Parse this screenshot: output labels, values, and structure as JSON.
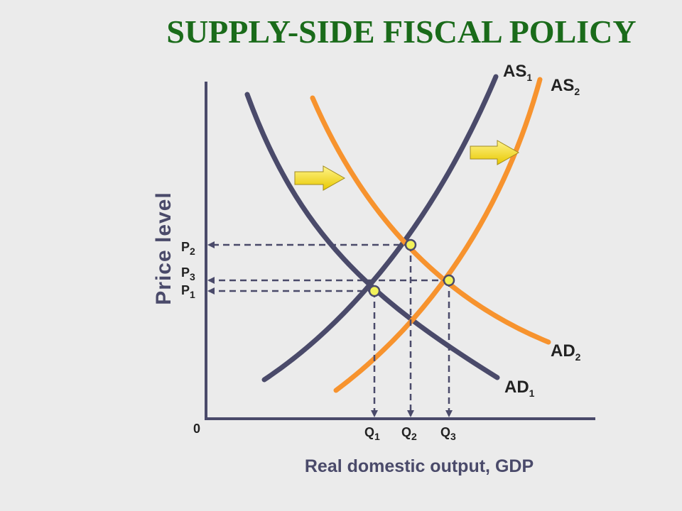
{
  "title": "SUPPLY-SIDE FISCAL POLICY",
  "y_axis_label": "Price level",
  "x_axis_label": "Real domestic output, GDP",
  "origin_label": "0",
  "curve_labels": [
    {
      "text": "AS",
      "sub": "1"
    },
    {
      "text": "AS",
      "sub": "2"
    },
    {
      "text": "AD",
      "sub": "2"
    },
    {
      "text": "AD",
      "sub": "1"
    }
  ],
  "price_labels": [
    {
      "text": "P",
      "sub": "2"
    },
    {
      "text": "P",
      "sub": "3"
    },
    {
      "text": "P",
      "sub": "1"
    }
  ],
  "quantity_labels": [
    {
      "text": "Q",
      "sub": "1"
    },
    {
      "text": "Q",
      "sub": "2"
    },
    {
      "text": "Q",
      "sub": "3"
    }
  ]
}
